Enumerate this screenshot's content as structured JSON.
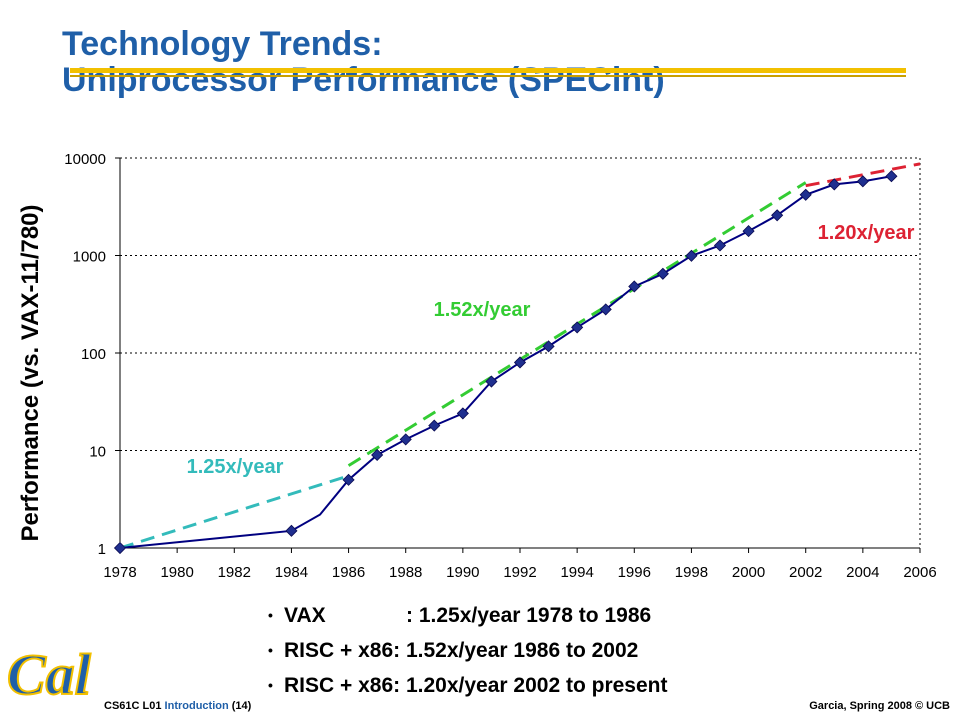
{
  "slide": {
    "title_line1": "Technology Trends:",
    "title_line2": "Uniprocessor Performance (SPECint)",
    "title_color": "#1f5fa8",
    "underline_color": "#f2c000"
  },
  "bullets": [
    {
      "a": "VAX",
      "b": ": 1.25x/year 1978 to 1986"
    },
    {
      "a": "RISC + x86",
      "b": ": 1.52x/year 1986 to 2002"
    },
    {
      "a": "RISC + x86",
      "b": ": 1.20x/year 2002 to present"
    }
  ],
  "footer": {
    "course": "CS61C L01",
    "topic": "Introduction",
    "page": "(14)",
    "credit": "Garcia, Spring 2008 © UCB"
  },
  "logo": {
    "text": "Cal",
    "color": "#1f5fa8",
    "outline": "#f2c000"
  },
  "chart_data": {
    "type": "line",
    "ylabel": "Performance (vs. VAX-11/780)",
    "xlabel": "",
    "yscale": "log",
    "xlim": [
      1978,
      2006
    ],
    "ylim": [
      1,
      10000
    ],
    "x_ticks": [
      "1978",
      "1980",
      "1982",
      "1984",
      "1986",
      "1988",
      "1990",
      "1992",
      "1994",
      "1996",
      "1998",
      "2000",
      "2002",
      "2004",
      "2006"
    ],
    "y_ticks": [
      "1",
      "10",
      "100",
      "1000",
      "10000"
    ],
    "grid": "horizontal dotted",
    "series": [
      {
        "color": "#000080",
        "marker": "diamond",
        "marker_color": "#1f2f8f",
        "points": [
          {
            "x": 1978,
            "y": 1,
            "marker": true
          },
          {
            "x": 1984,
            "y": 1.5,
            "marker": true
          },
          {
            "x": 1985,
            "y": 2.2,
            "marker": false
          },
          {
            "x": 1986,
            "y": 5,
            "marker": true
          },
          {
            "x": 1987,
            "y": 9,
            "marker": true
          },
          {
            "x": 1988,
            "y": 13,
            "marker": true
          },
          {
            "x": 1989,
            "y": 18,
            "marker": true
          },
          {
            "x": 1990,
            "y": 24,
            "marker": true
          },
          {
            "x": 1991,
            "y": 51,
            "marker": true
          },
          {
            "x": 1992,
            "y": 80,
            "marker": true
          },
          {
            "x": 1993,
            "y": 117,
            "marker": true
          },
          {
            "x": 1994,
            "y": 183,
            "marker": true
          },
          {
            "x": 1995,
            "y": 280,
            "marker": true
          },
          {
            "x": 1996,
            "y": 481,
            "marker": true
          },
          {
            "x": 1997,
            "y": 649,
            "marker": true
          },
          {
            "x": 1998,
            "y": 993,
            "marker": true
          },
          {
            "x": 1999,
            "y": 1267,
            "marker": true
          },
          {
            "x": 2000,
            "y": 1779,
            "marker": true
          },
          {
            "x": 2001,
            "y": 2584,
            "marker": true
          },
          {
            "x": 2002,
            "y": 4195,
            "marker": true
          },
          {
            "x": 2003,
            "y": 5364,
            "marker": true
          },
          {
            "x": 2004,
            "y": 5764,
            "marker": true
          },
          {
            "x": 2005,
            "y": 6505,
            "marker": true
          }
        ]
      }
    ],
    "trend_lines": [
      {
        "label": "1.25x/year",
        "color": "#33bbbb",
        "from": [
          1978,
          1
        ],
        "to": [
          1986,
          5.5
        ]
      },
      {
        "label": "1.52x/year",
        "color": "#33cc33",
        "from": [
          1986,
          7
        ],
        "to": [
          2002,
          5600
        ]
      },
      {
        "label": "1.20x/year",
        "color": "#dd2233",
        "from": [
          2002,
          5200
        ],
        "to": [
          2006,
          8700
        ]
      }
    ]
  }
}
